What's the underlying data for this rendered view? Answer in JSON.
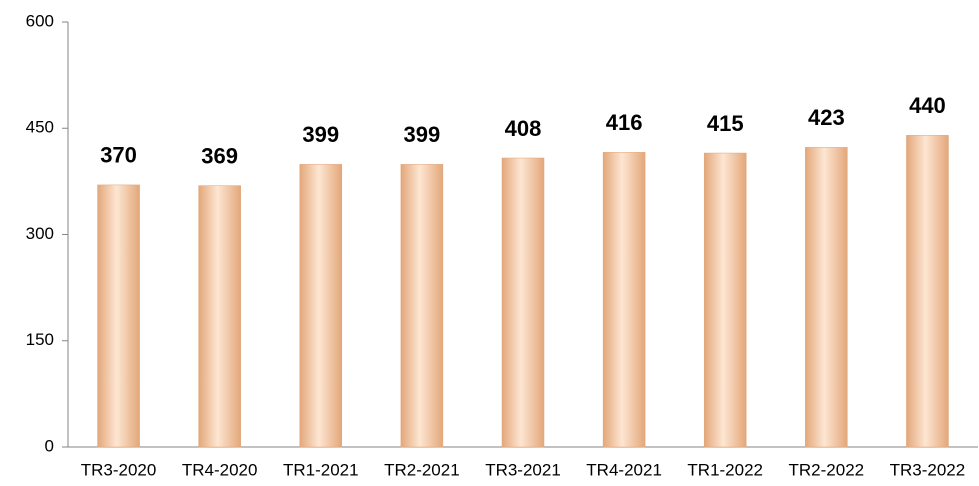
{
  "chart_data": {
    "type": "bar",
    "categories": [
      "TR3-2020",
      "TR4-2020",
      "TR1-2021",
      "TR2-2021",
      "TR3-2021",
      "TR4-2021",
      "TR1-2022",
      "TR2-2022",
      "TR3-2022"
    ],
    "values": [
      370,
      369,
      399,
      399,
      408,
      416,
      415,
      423,
      440
    ],
    "color": "#fcd5b4",
    "ylim": [
      0,
      600
    ],
    "yticks": [
      0,
      150,
      300,
      450,
      600
    ],
    "grid": false
  }
}
